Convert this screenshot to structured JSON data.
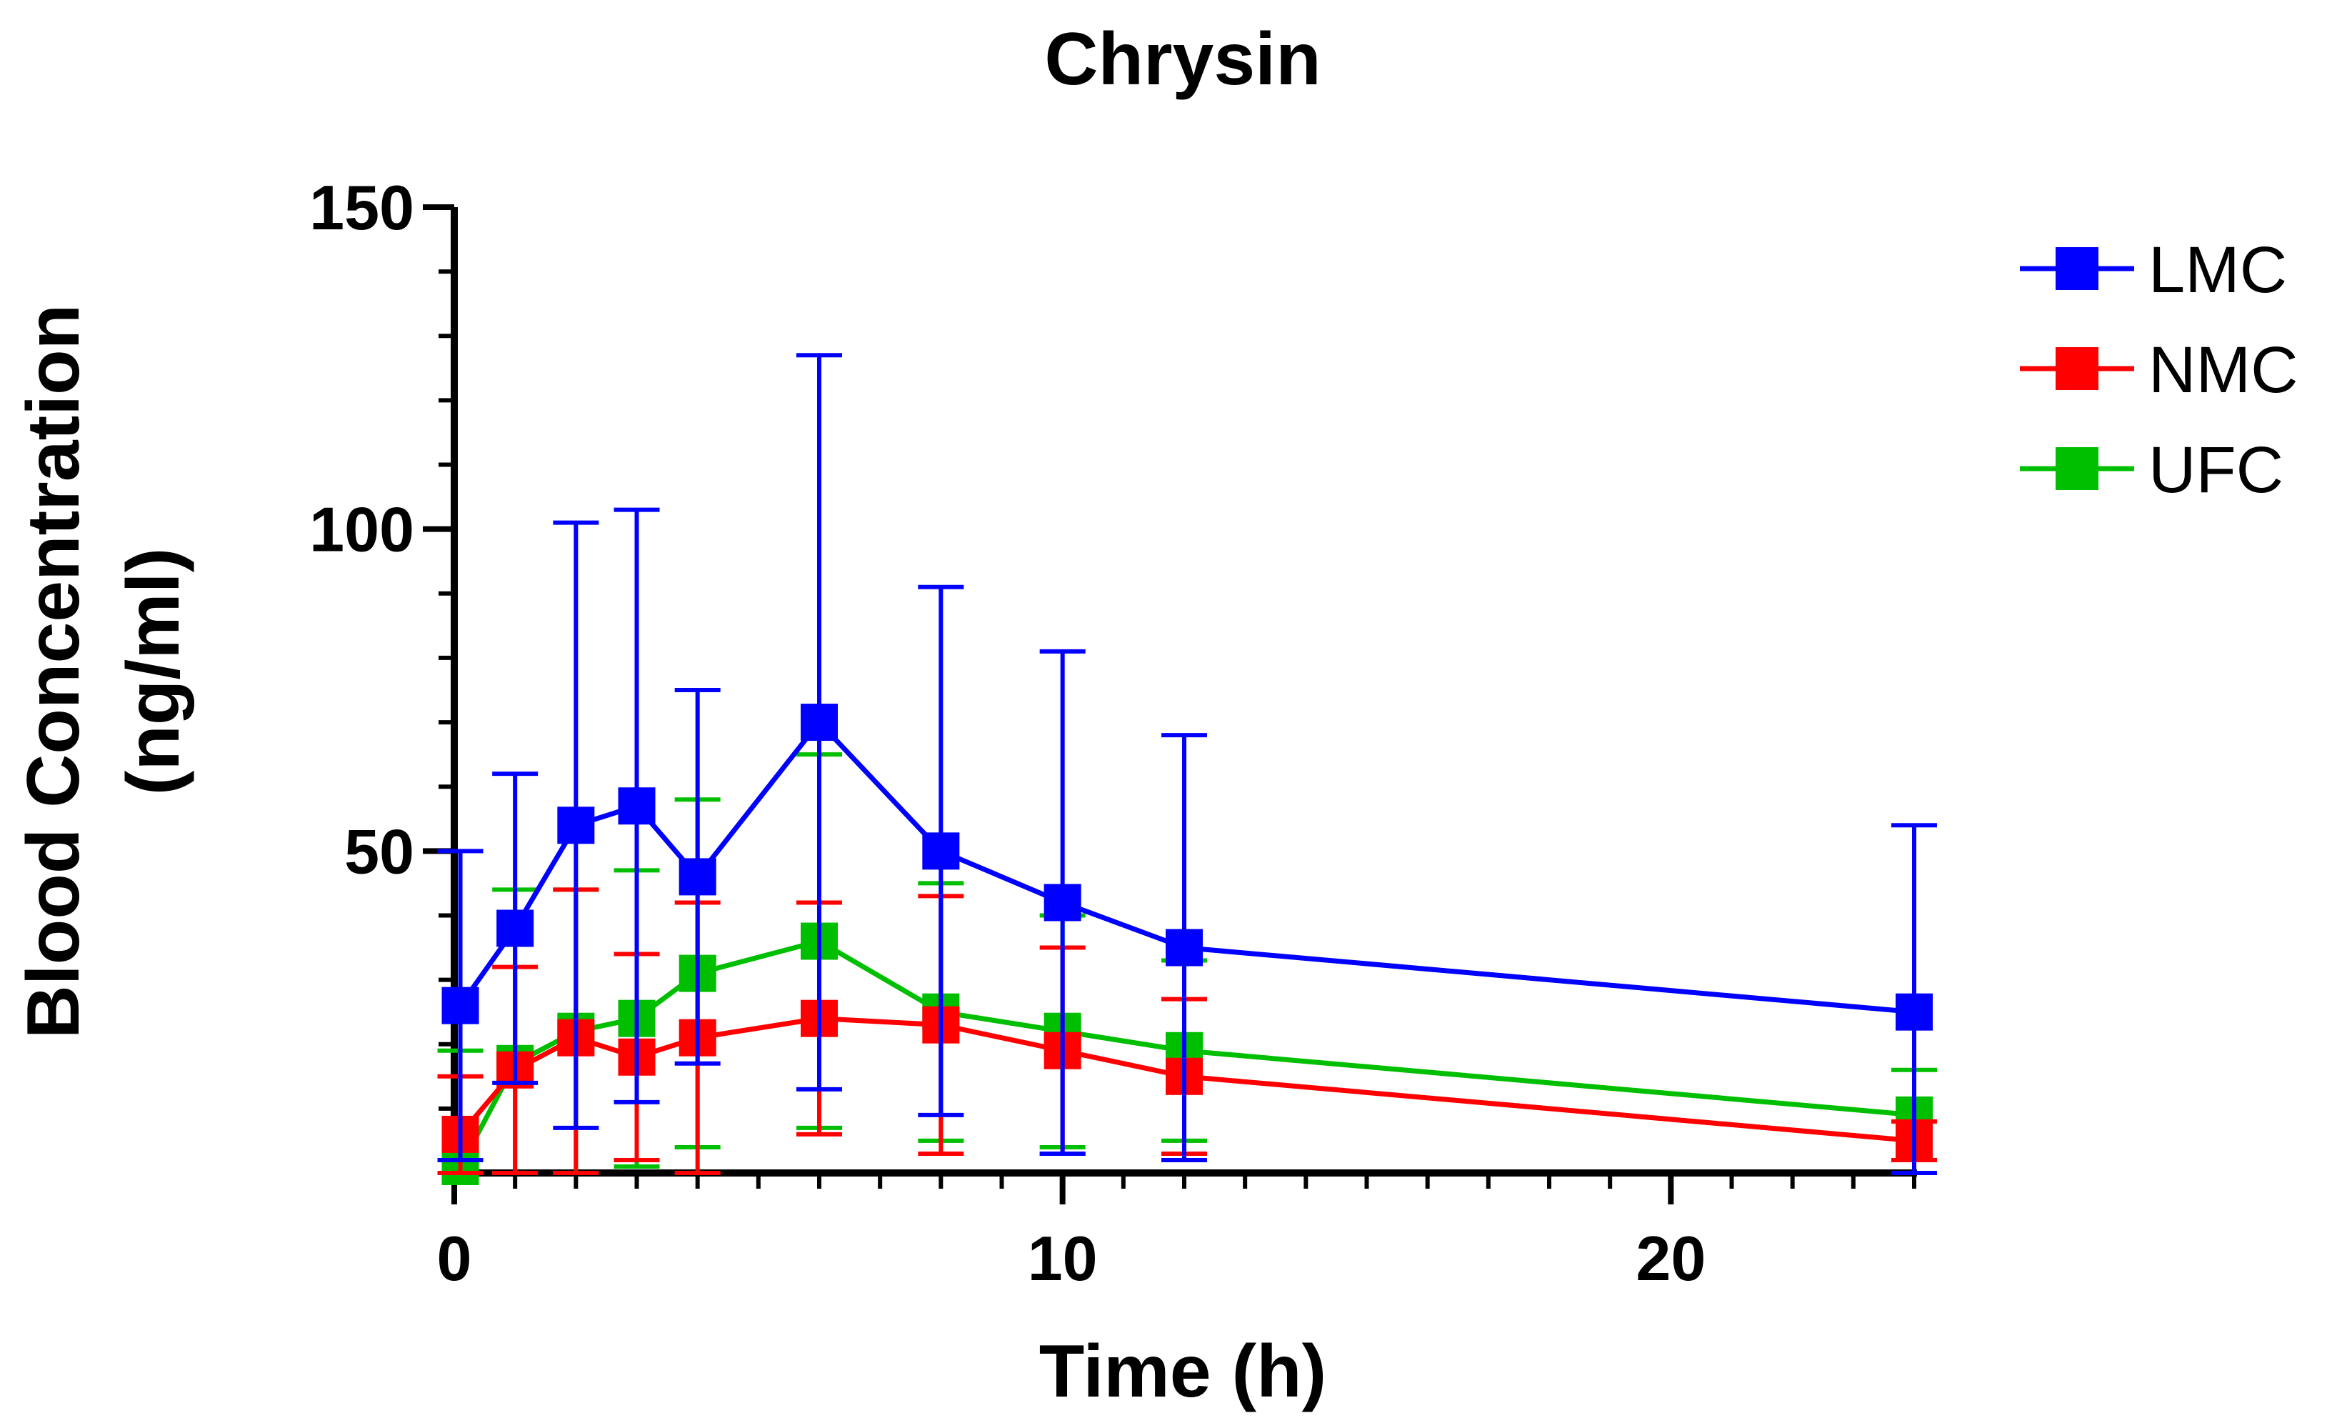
{
  "chart_data": {
    "type": "line",
    "title": "Chrysin",
    "xlabel": "Time (h)",
    "ylabel_line1": "Blood Concentration",
    "ylabel_line2": "(ng/ml)",
    "xlim": [
      0,
      24
    ],
    "ylim": [
      0,
      150
    ],
    "x_ticks": [
      0,
      10,
      20
    ],
    "y_ticks": [
      50,
      100,
      150
    ],
    "x_minor_step": 1,
    "y_minor_step": 10,
    "grid": false,
    "legend_position": "top-right",
    "series": [
      {
        "name": "LMC",
        "color": "#0000ff",
        "points": [
          {
            "x": 0.1,
            "y": 26,
            "err": 24
          },
          {
            "x": 1,
            "y": 38,
            "err": 24
          },
          {
            "x": 2,
            "y": 54,
            "err": 47
          },
          {
            "x": 3,
            "y": 57,
            "err": 46
          },
          {
            "x": 4,
            "y": 46,
            "err": 29
          },
          {
            "x": 6,
            "y": 70,
            "err": 57
          },
          {
            "x": 8,
            "y": 50,
            "err": 41
          },
          {
            "x": 10,
            "y": 42,
            "err": 39
          },
          {
            "x": 12,
            "y": 35,
            "err": 33
          },
          {
            "x": 24,
            "y": 25,
            "err": 29
          }
        ]
      },
      {
        "name": "NMC",
        "color": "#ff0000",
        "points": [
          {
            "x": 0.1,
            "y": 6,
            "err": 9
          },
          {
            "x": 1,
            "y": 16,
            "err": 16
          },
          {
            "x": 2,
            "y": 21,
            "err": 23
          },
          {
            "x": 3,
            "y": 18,
            "err": 16
          },
          {
            "x": 4,
            "y": 21,
            "err": 21
          },
          {
            "x": 6,
            "y": 24,
            "err": 18
          },
          {
            "x": 8,
            "y": 23,
            "err": 20
          },
          {
            "x": 10,
            "y": 19,
            "err": 16
          },
          {
            "x": 12,
            "y": 15,
            "err": 12
          },
          {
            "x": 24,
            "y": 5,
            "err": 3
          }
        ]
      },
      {
        "name": "UFC",
        "color": "#00bf00",
        "points": [
          {
            "x": 0.1,
            "y": 1,
            "err": 18
          },
          {
            "x": 1,
            "y": 17,
            "err": 27
          },
          {
            "x": 2,
            "y": 22,
            "err": 22
          },
          {
            "x": 3,
            "y": 24,
            "err": 23
          },
          {
            "x": 4,
            "y": 31,
            "err": 27
          },
          {
            "x": 6,
            "y": 36,
            "err": 29
          },
          {
            "x": 8,
            "y": 25,
            "err": 20
          },
          {
            "x": 10,
            "y": 22,
            "err": 18
          },
          {
            "x": 12,
            "y": 19,
            "err": 14
          },
          {
            "x": 24,
            "y": 9,
            "err": 7
          }
        ]
      }
    ]
  }
}
